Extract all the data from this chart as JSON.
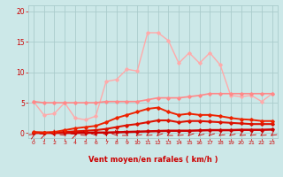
{
  "background_color": "#cce8e8",
  "grid_color": "#aacccc",
  "xlabel": "Vent moyen/en rafales ( km/h )",
  "xlabel_color": "#cc0000",
  "tick_color": "#cc0000",
  "xlim": [
    -0.5,
    23.5
  ],
  "ylim": [
    -0.8,
    21
  ],
  "yticks": [
    0,
    5,
    10,
    15,
    20
  ],
  "xticks": [
    0,
    1,
    2,
    3,
    4,
    5,
    6,
    7,
    8,
    9,
    10,
    11,
    12,
    13,
    14,
    15,
    16,
    17,
    18,
    19,
    20,
    21,
    22,
    23
  ],
  "series": [
    {
      "x": [
        0,
        1,
        2,
        3,
        4,
        5,
        6,
        7,
        8,
        9,
        10,
        11,
        12,
        13,
        14,
        15,
        16,
        17,
        18,
        19,
        20,
        21,
        22,
        23
      ],
      "y": [
        0.05,
        0.05,
        0.05,
        0.05,
        0.05,
        0.05,
        0.1,
        0.1,
        0.15,
        0.2,
        0.25,
        0.3,
        0.35,
        0.4,
        0.4,
        0.4,
        0.45,
        0.5,
        0.5,
        0.5,
        0.55,
        0.55,
        0.55,
        0.6
      ],
      "color": "#cc0000",
      "lw": 1.8,
      "marker": "D",
      "markersize": 1.8
    },
    {
      "x": [
        0,
        1,
        2,
        3,
        4,
        5,
        6,
        7,
        8,
        9,
        10,
        11,
        12,
        13,
        14,
        15,
        16,
        17,
        18,
        19,
        20,
        21,
        22,
        23
      ],
      "y": [
        0.1,
        0.1,
        0.1,
        0.2,
        0.3,
        0.4,
        0.5,
        0.7,
        1.0,
        1.3,
        1.5,
        1.8,
        2.1,
        2.1,
        1.8,
        2.0,
        2.0,
        1.9,
        1.8,
        1.7,
        1.6,
        1.5,
        1.5,
        1.5
      ],
      "color": "#dd1100",
      "lw": 1.5,
      "marker": "D",
      "markersize": 1.8
    },
    {
      "x": [
        0,
        1,
        2,
        3,
        4,
        5,
        6,
        7,
        8,
        9,
        10,
        11,
        12,
        13,
        14,
        15,
        16,
        17,
        18,
        19,
        20,
        21,
        22,
        23
      ],
      "y": [
        0.2,
        0.1,
        0.2,
        0.5,
        0.8,
        1.0,
        1.2,
        1.8,
        2.5,
        3.0,
        3.5,
        4.0,
        4.2,
        3.5,
        3.0,
        3.2,
        3.0,
        3.0,
        2.8,
        2.5,
        2.3,
        2.2,
        2.0,
        2.0
      ],
      "color": "#ee2200",
      "lw": 1.4,
      "marker": "D",
      "markersize": 1.8
    },
    {
      "x": [
        0,
        1,
        2,
        3,
        4,
        5,
        6,
        7,
        8,
        9,
        10,
        11,
        12,
        13,
        14,
        15,
        16,
        17,
        18,
        19,
        20,
        21,
        22,
        23
      ],
      "y": [
        5.2,
        3.0,
        3.2,
        5.0,
        2.5,
        2.2,
        2.8,
        8.5,
        8.8,
        10.5,
        10.2,
        16.5,
        16.5,
        15.2,
        11.5,
        13.2,
        11.5,
        13.2,
        11.2,
        6.2,
        6.0,
        6.2,
        5.2,
        6.5
      ],
      "color": "#ffaaaa",
      "lw": 1.0,
      "marker": "D",
      "markersize": 1.8
    },
    {
      "x": [
        0,
        1,
        2,
        3,
        4,
        5,
        6,
        7,
        8,
        9,
        10,
        11,
        12,
        13,
        14,
        15,
        16,
        17,
        18,
        19,
        20,
        21,
        22,
        23
      ],
      "y": [
        5.2,
        5.0,
        5.0,
        5.0,
        5.0,
        5.0,
        5.0,
        5.2,
        5.2,
        5.2,
        5.2,
        5.5,
        5.8,
        5.8,
        5.8,
        6.0,
        6.2,
        6.5,
        6.5,
        6.5,
        6.5,
        6.5,
        6.5,
        6.5
      ],
      "color": "#ff8888",
      "lw": 1.2,
      "marker": "D",
      "markersize": 1.8
    }
  ],
  "wind_arrow_angles": [
    45,
    30,
    -70,
    -50,
    30,
    -45,
    -60,
    -70,
    -60,
    -40,
    -130,
    -135,
    -120,
    -140,
    -135,
    -120,
    -125,
    -120,
    -130,
    -125,
    -135,
    -130,
    -135,
    -130
  ]
}
